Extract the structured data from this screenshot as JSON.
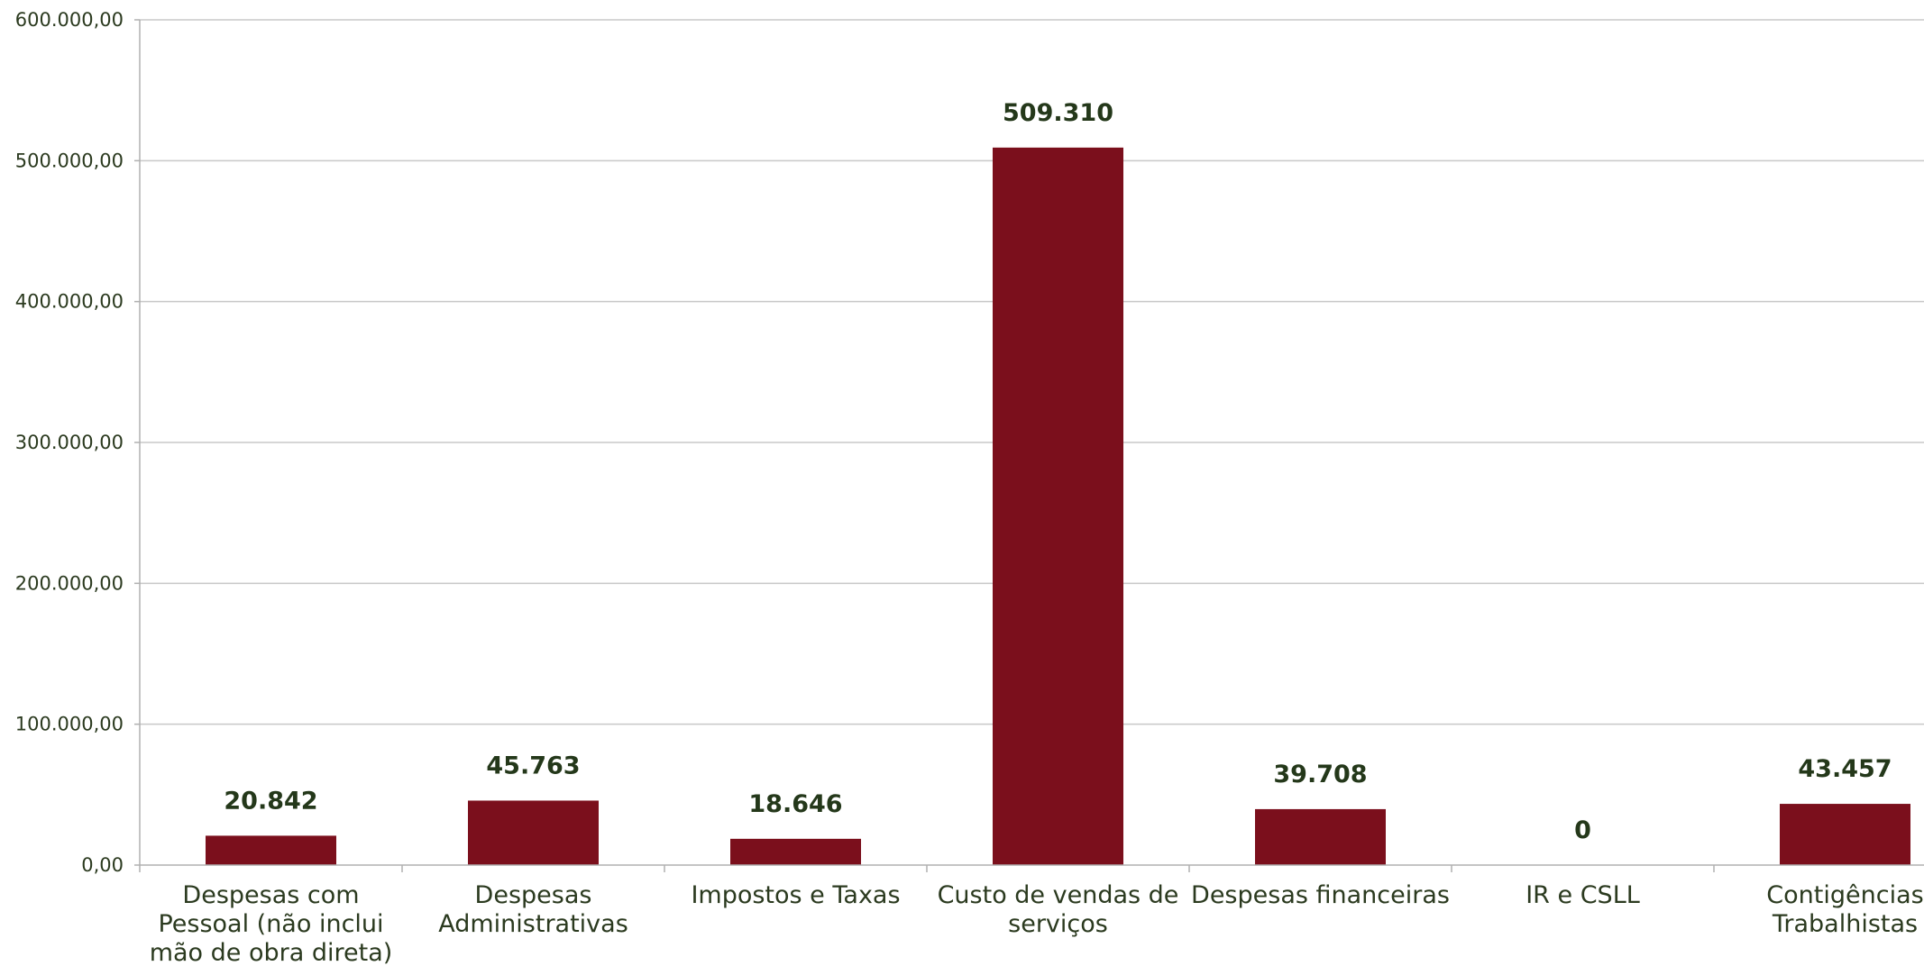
{
  "chart_data": {
    "type": "bar",
    "categories": [
      [
        "Despesas com",
        "Pessoal (não inclui",
        "mão de obra direta)"
      ],
      [
        "Despesas",
        "Administrativas"
      ],
      [
        "Impostos e Taxas"
      ],
      [
        "Custo de vendas de",
        "serviços"
      ],
      [
        "Despesas financeiras"
      ],
      [
        "IR e CSLL"
      ],
      [
        "Contigências",
        "Trabalhistas"
      ]
    ],
    "values": [
      20842,
      45763,
      18646,
      509310,
      39708,
      0,
      43457
    ],
    "data_labels": [
      "20.842",
      "45.763",
      "18.646",
      "509.310",
      "39.708",
      "0",
      "43.457"
    ],
    "y_ticks": [
      "0,00",
      "100.000,00",
      "200.000,00",
      "300.000,00",
      "400.000,00",
      "500.000,00",
      "600.000,00"
    ],
    "y_tick_values": [
      0,
      100000,
      200000,
      300000,
      400000,
      500000,
      600000
    ],
    "ylim": [
      0,
      600000
    ],
    "grid": true,
    "legend": "none",
    "colors": {
      "bar": "#7b0f1c",
      "text": "#24381a",
      "grid": "#c8c8c8"
    }
  }
}
